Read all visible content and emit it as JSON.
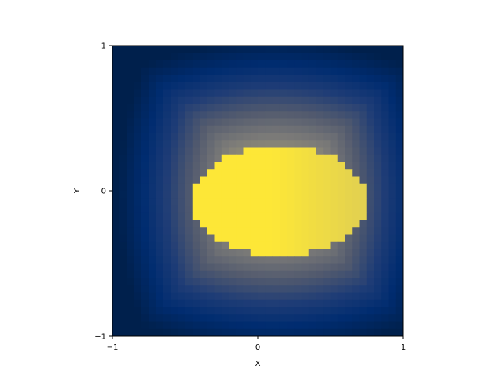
{
  "chart_data": {
    "type": "heatmap",
    "title": "",
    "xlabel": "X",
    "ylabel": "Y",
    "xlim": [
      -1,
      1
    ],
    "ylim": [
      -1,
      1
    ],
    "xticks": [
      {
        "value": -1,
        "label": "−1"
      },
      {
        "value": 0,
        "label": "0"
      },
      {
        "value": 1,
        "label": "1"
      }
    ],
    "yticks": [
      {
        "value": -1,
        "label": "−1"
      },
      {
        "value": 0,
        "label": "0"
      },
      {
        "value": 1,
        "label": "1"
      }
    ],
    "grid": false,
    "colormap": "cividis",
    "grid_size": [
      40,
      40
    ],
    "hot_region": {
      "shape": "ellipse",
      "center": [
        0.15,
        -0.07
      ],
      "radius_x": 0.6,
      "radius_y": 0.38,
      "color": "#fde737"
    },
    "colors": {
      "low": "#00204c",
      "mid": "#7c7b78",
      "high": "#fde737"
    }
  }
}
